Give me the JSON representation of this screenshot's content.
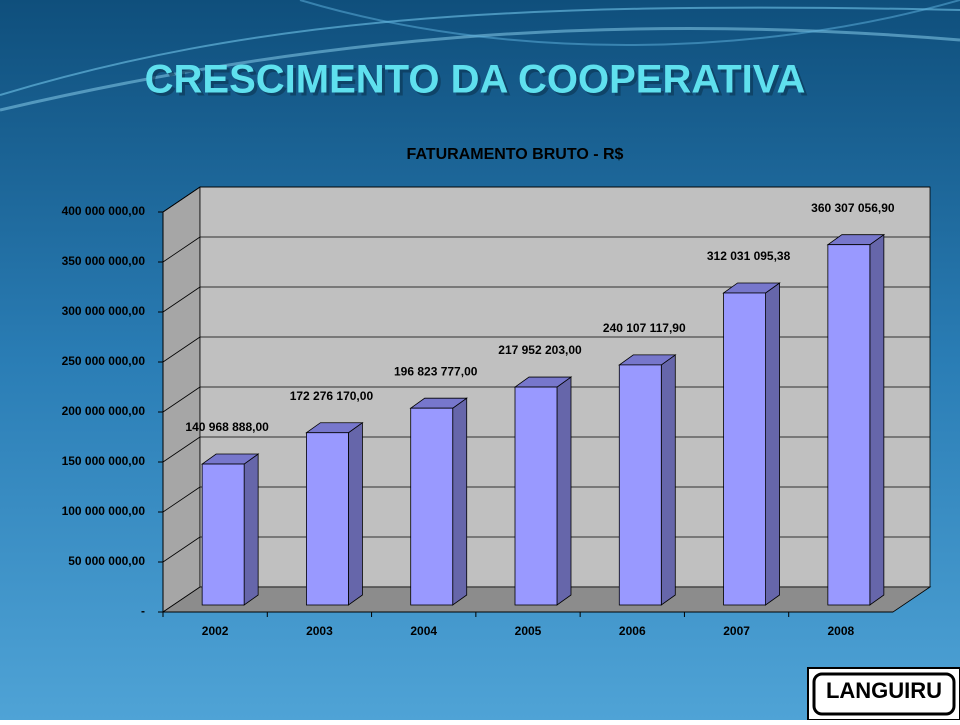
{
  "slide_title": "CRESCIMENTO DA COOPERATIVA",
  "logo": "LANGUIRU",
  "chart_data": {
    "type": "bar3d",
    "title": "FATURAMENTO BRUTO - R$",
    "categories": [
      "2002",
      "2003",
      "2004",
      "2005",
      "2006",
      "2007",
      "2008"
    ],
    "values": [
      140968888.0,
      172276170.0,
      196823777.0,
      217952203.0,
      240107117.9,
      312031095.38,
      360307056.9
    ],
    "value_labels": [
      "140 968 888,00",
      "172 276 170,00",
      "196 823 777,00",
      "217 952 203,00",
      "240 107 117,90",
      "312 031 095,38",
      "360 307 056,90"
    ],
    "color": "#9999ff",
    "ylim": [
      0,
      400000000
    ],
    "yticks": [
      {
        "value": 0,
        "label": "-"
      },
      {
        "value": 50000000,
        "label": "50 000 000,00"
      },
      {
        "value": 100000000,
        "label": "100 000 000,00"
      },
      {
        "value": 150000000,
        "label": "150 000 000,00"
      },
      {
        "value": 200000000,
        "label": "200 000 000,00"
      },
      {
        "value": 250000000,
        "label": "250 000 000,00"
      },
      {
        "value": 300000000,
        "label": "300 000 000,00"
      },
      {
        "value": 350000000,
        "label": "350 000 000,00"
      },
      {
        "value": 400000000,
        "label": "400 000 000,00"
      }
    ],
    "grid": true
  }
}
